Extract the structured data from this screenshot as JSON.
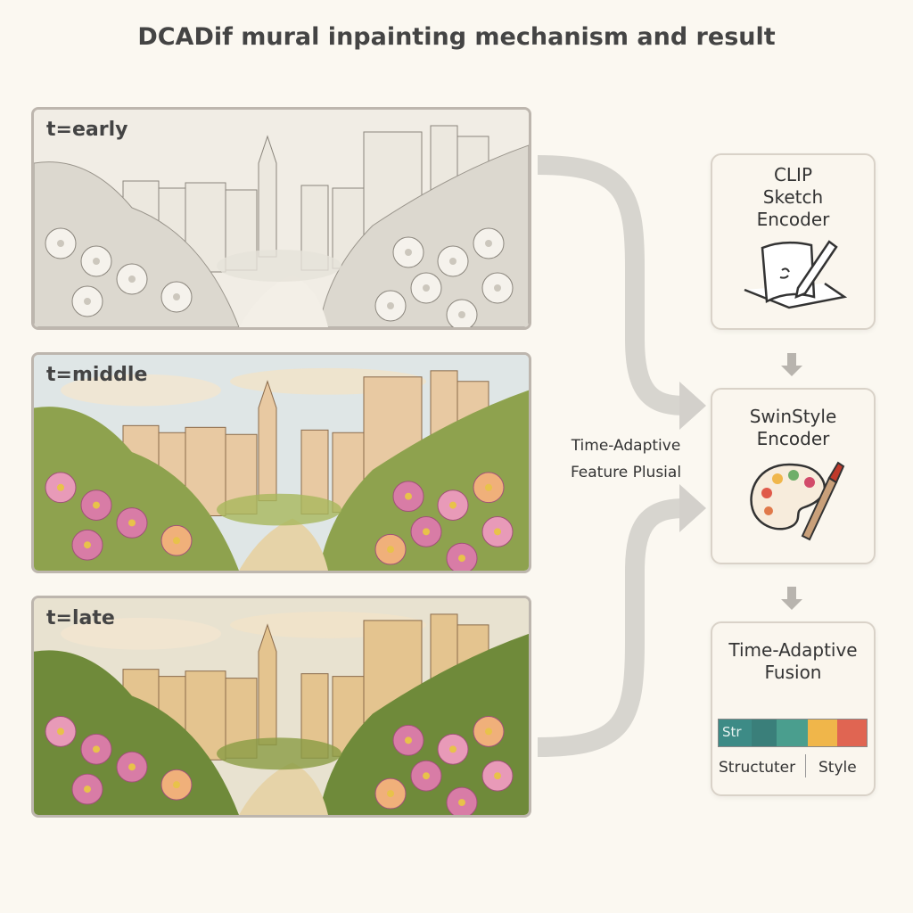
{
  "title": "DCADif mural inpainting mechanism and result",
  "panels": [
    {
      "label": "t=early",
      "style": "sketch"
    },
    {
      "label": "t=middle",
      "style": "partial-color"
    },
    {
      "label": "t=late",
      "style": "full-color"
    }
  ],
  "middle_label": {
    "line1": "Time-Adaptive",
    "line2": "Feature Plusial"
  },
  "boxes": {
    "clip": {
      "line1": "CLIP",
      "line2": "Sketch",
      "line3": "Encoder",
      "icon": "sketch-paper-pencil-icon"
    },
    "swin": {
      "line1": "SwinStyle",
      "line2": "Encoder",
      "icon": "paint-palette-icon"
    },
    "fusion": {
      "line1": "Time-Adaptive",
      "line2": "Fusion",
      "bar_text": "Str",
      "label_left": "Structuter",
      "label_right": "Style",
      "segments": [
        "#3d8b86",
        "#3a7f7a",
        "#4a9e8e",
        "#f0b64a",
        "#e06552"
      ]
    }
  },
  "colors": {
    "background": "#fbf8f1",
    "arrow": "#c8c5c0",
    "border": "#bdb6ae"
  }
}
